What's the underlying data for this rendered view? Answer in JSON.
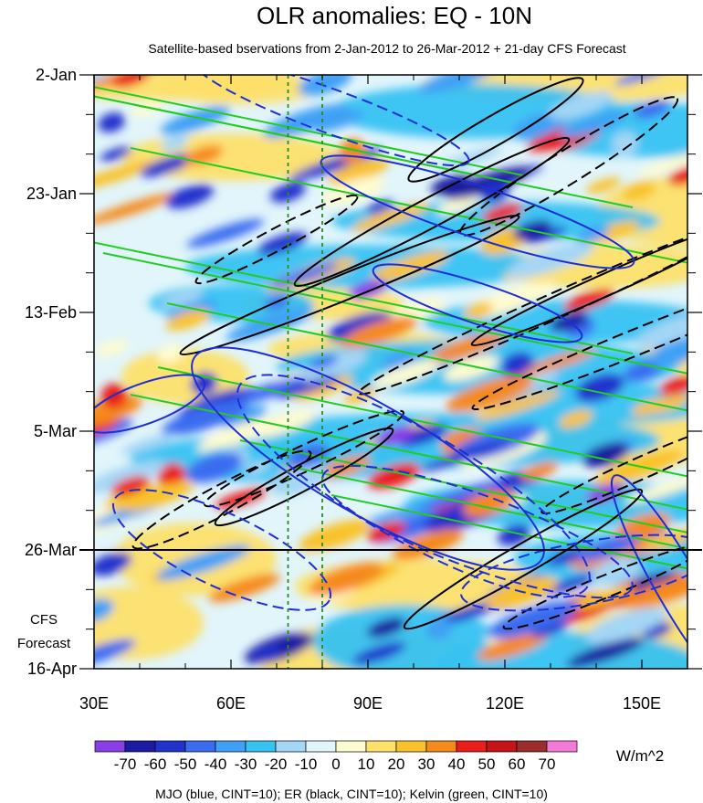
{
  "chart_data": {
    "type": "heatmap",
    "title": "OLR anomalies: EQ - 10N",
    "subtitle": "Satellite-based bservations from 2-Jan-2012 to 26-Mar-2012 + 21-day CFS Forecast",
    "x_axis": {
      "range": [
        30,
        160
      ],
      "ticks": [
        30,
        60,
        90,
        120,
        150
      ],
      "tick_labels": [
        "30E",
        "60E",
        "90E",
        "120E",
        "150E"
      ]
    },
    "y_axis": {
      "reversed": true,
      "tick_labels": [
        "2-Jan",
        "23-Jan",
        "13-Feb",
        "5-Mar",
        "26-Mar",
        "16-Apr"
      ],
      "tick_days": [
        0,
        21,
        42,
        63,
        84,
        105
      ],
      "forecast_label_line1": "CFS",
      "forecast_label_line2": "Forecast"
    },
    "observation_end_line": "26-Mar",
    "reference_lines_lon": [
      72.5,
      80
    ],
    "colorbar": {
      "unit": "W/m^2",
      "levels": [
        -70,
        -60,
        -50,
        -40,
        -30,
        -20,
        -10,
        0,
        10,
        20,
        30,
        40,
        50,
        60,
        70
      ],
      "level_labels": [
        "-70",
        "-60",
        "-50",
        "-40",
        "-30",
        "-20",
        "-10",
        "0",
        "10",
        "20",
        "30",
        "40",
        "50",
        "60",
        "70"
      ],
      "colors": [
        "#8a3ee6",
        "#1c1aa0",
        "#2233cc",
        "#3b6cf0",
        "#41a0f5",
        "#37c2f2",
        "#a4d6f5",
        "#e1f5fb",
        "#fdfbd0",
        "#fde06a",
        "#f9c22c",
        "#f58a1c",
        "#ea1d1d",
        "#c41418",
        "#9a2d2d",
        "#f47ad8"
      ]
    },
    "footer": "MJO (blue, CINT=10); ER (black, CINT=10); Kelvin (green, CINT=10)",
    "contour_colors": {
      "mjo": "#1e2fd6",
      "er": "#000000",
      "kelvin": "#22cc22",
      "ref_lines": "#2a8a2a"
    }
  }
}
